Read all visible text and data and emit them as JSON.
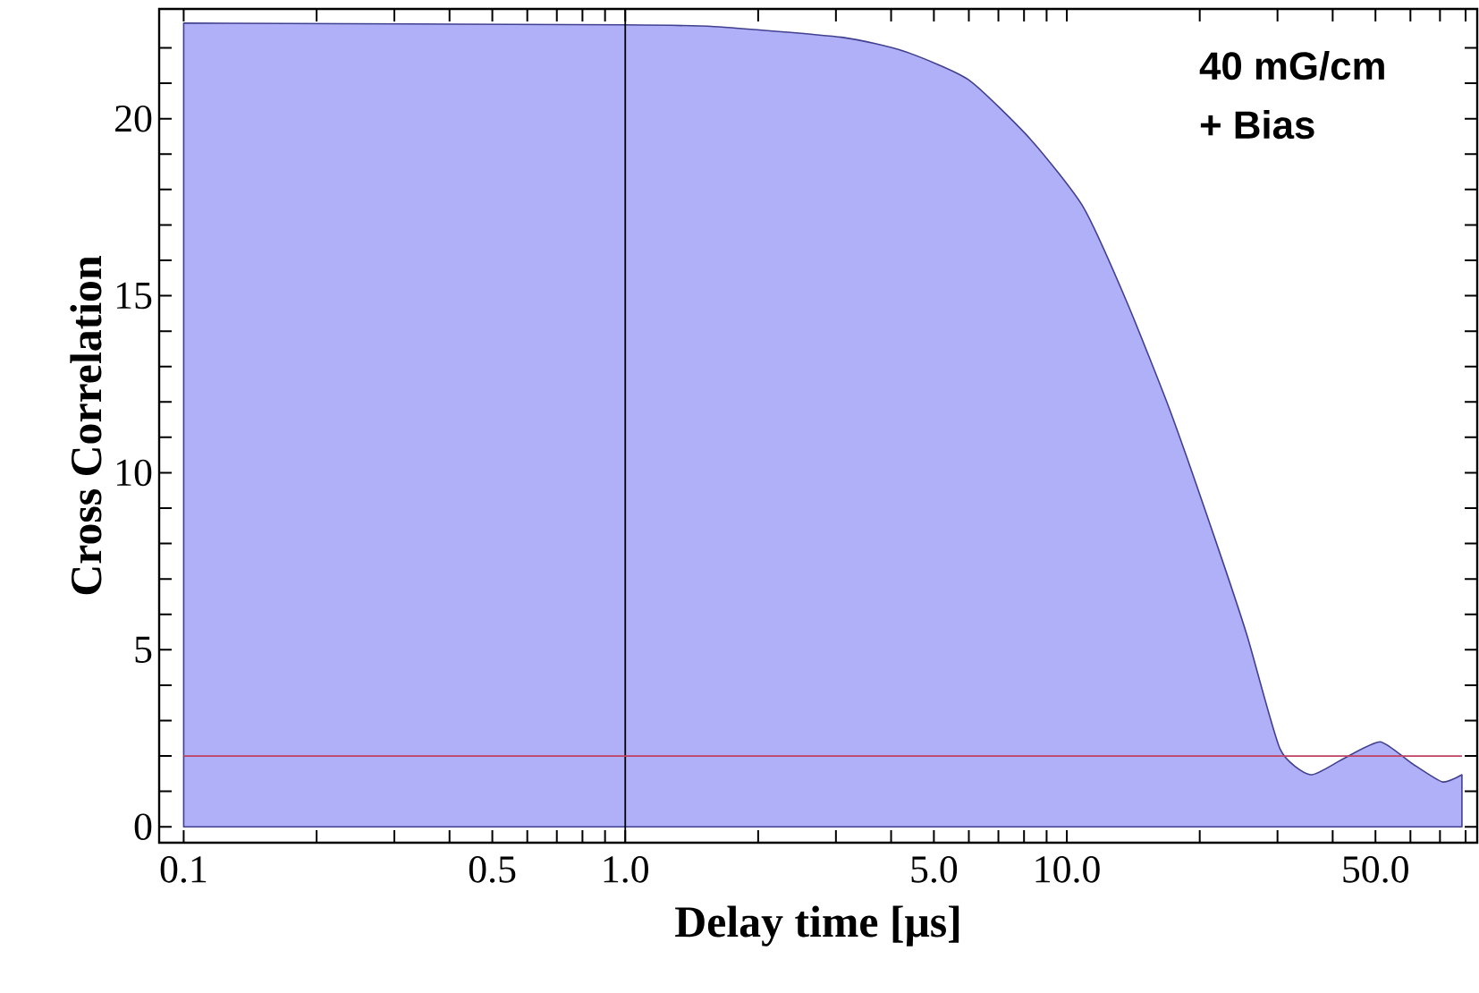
{
  "chart_data": {
    "type": "area",
    "xlabel": "Delay time [μs]",
    "ylabel": "Cross Correlation",
    "annotations": [
      "40 mG/cm",
      "+ Bias"
    ],
    "log": "x",
    "grid": false,
    "xlim": [
      0.088,
      85
    ],
    "ylim": [
      -0.45,
      23.1
    ],
    "xticks": [
      {
        "value": 0.1,
        "label": "0.1"
      },
      {
        "value": 0.2,
        "label": null
      },
      {
        "value": 0.3,
        "label": null
      },
      {
        "value": 0.4,
        "label": null
      },
      {
        "value": 0.5,
        "label": "0.5"
      },
      {
        "value": 0.6,
        "label": null
      },
      {
        "value": 0.7,
        "label": null
      },
      {
        "value": 0.8,
        "label": null
      },
      {
        "value": 0.9,
        "label": null
      },
      {
        "value": 1,
        "label": "1.0"
      },
      {
        "value": 2,
        "label": null
      },
      {
        "value": 3,
        "label": null
      },
      {
        "value": 4,
        "label": null
      },
      {
        "value": 5,
        "label": "5.0"
      },
      {
        "value": 6,
        "label": null
      },
      {
        "value": 7,
        "label": null
      },
      {
        "value": 8,
        "label": null
      },
      {
        "value": 9,
        "label": null
      },
      {
        "value": 10,
        "label": "10.0"
      },
      {
        "value": 20,
        "label": null
      },
      {
        "value": 30,
        "label": null
      },
      {
        "value": 40,
        "label": null
      },
      {
        "value": 50,
        "label": "50.0"
      },
      {
        "value": 60,
        "label": null
      },
      {
        "value": 70,
        "label": null
      },
      {
        "value": 80,
        "label": null
      }
    ],
    "yticks": [
      0,
      {
        "value": 1,
        "label": null
      },
      {
        "value": 2,
        "label": null
      },
      {
        "value": 3,
        "label": null
      },
      {
        "value": 4,
        "label": null
      },
      5,
      {
        "value": 6,
        "label": null
      },
      {
        "value": 7,
        "label": null
      },
      {
        "value": 8,
        "label": null
      },
      {
        "value": 9,
        "label": null
      },
      10,
      {
        "value": 11,
        "label": null
      },
      {
        "value": 12,
        "label": null
      },
      {
        "value": 13,
        "label": null
      },
      {
        "value": 14,
        "label": null
      },
      15,
      {
        "value": 16,
        "label": null
      },
      {
        "value": 17,
        "label": null
      },
      {
        "value": 18,
        "label": null
      },
      {
        "value": 19,
        "label": null
      },
      20,
      {
        "value": 21,
        "label": null
      },
      {
        "value": 22,
        "label": null
      }
    ],
    "ref_lines": [
      {
        "axis": "x",
        "value": 1,
        "color": "#000000"
      },
      {
        "axis": "y",
        "value": 2,
        "color": "#c04060"
      }
    ],
    "series": [
      {
        "color": "#b0b0f8",
        "x": [
          0.1,
          1,
          1.59,
          3.09,
          4.29,
          5.99,
          8.3,
          10.9,
          13.7,
          17.2,
          21.7,
          25.6,
          30.4,
          35.6,
          42,
          51.2,
          60.3,
          70.8,
          78.5
        ],
        "values": [
          22.7,
          22.65,
          22.6,
          22.3,
          21.9,
          21.1,
          19.4,
          17.5,
          14.8,
          11.7,
          8.1,
          5.4,
          2.2,
          1.47,
          1.9,
          2.4,
          1.8,
          1.27,
          1.47
        ]
      }
    ]
  }
}
